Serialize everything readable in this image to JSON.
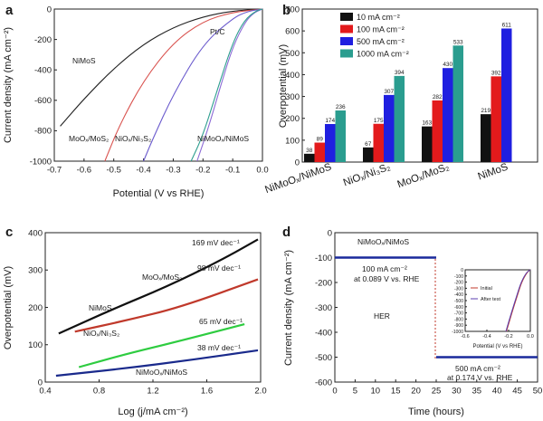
{
  "chart_data": [
    {
      "panel": "a",
      "type": "line",
      "xlabel": "Potential (V vs RHE)",
      "ylabel": "Current density (mA cm⁻²)",
      "xlim": [
        -0.7,
        0.0
      ],
      "ylim": [
        -1000,
        0
      ],
      "xticks": [
        "-0.7",
        "-0.6",
        "-0.5",
        "-0.4",
        "-0.3",
        "-0.2",
        "-0.1",
        "0.0"
      ],
      "yticks": [
        "-1000",
        "-800",
        "-600",
        "-400",
        "-200",
        "0"
      ],
      "series": [
        {
          "name": "NiMoS",
          "color": "#222222",
          "x": [
            0.0,
            -0.1,
            -0.2,
            -0.3,
            -0.4,
            -0.5,
            -0.6,
            -0.68
          ],
          "y": [
            0,
            -12,
            -50,
            -120,
            -230,
            -390,
            -590,
            -770
          ]
        },
        {
          "name": "MoOₓ/MoS₂",
          "color": "#d9534f",
          "x": [
            0.0,
            -0.1,
            -0.2,
            -0.3,
            -0.4,
            -0.48,
            -0.53
          ],
          "y": [
            0,
            -20,
            -80,
            -220,
            -470,
            -760,
            -1000
          ]
        },
        {
          "name": "NiOₓ/Ni₃S₂",
          "color": "#6a5acd",
          "x": [
            0.0,
            -0.05,
            -0.1,
            -0.2,
            -0.3,
            -0.37,
            -0.4
          ],
          "y": [
            0,
            -15,
            -60,
            -230,
            -560,
            -860,
            -1000
          ]
        },
        {
          "name": "Pt/C",
          "color": "#8c6bd6",
          "x": [
            0.0,
            -0.03,
            -0.06,
            -0.1,
            -0.14,
            -0.18,
            -0.22
          ],
          "y": [
            0,
            -25,
            -90,
            -250,
            -500,
            -770,
            -1000
          ]
        },
        {
          "name": "NiMoOₓ/NiMoS",
          "color": "#2e9e8f",
          "x": [
            0.0,
            -0.02,
            -0.06,
            -0.1,
            -0.15,
            -0.2,
            -0.24
          ],
          "y": [
            0,
            -10,
            -70,
            -220,
            -520,
            -830,
            -1000
          ]
        }
      ],
      "labels": [
        "NiMoS",
        "MoOₓ/MoS₂",
        "NiOₓ/Ni₃S₂",
        "Pt/C",
        "NiMoOₓ/NiMoS"
      ]
    },
    {
      "panel": "b",
      "type": "bar",
      "ylabel": "Overpotential (mV)",
      "ylim": [
        0,
        700
      ],
      "yticks": [
        "0",
        "100",
        "200",
        "300",
        "400",
        "500",
        "600",
        "700"
      ],
      "categories": [
        "NiMoOₓ/NiMoS",
        "NiOₓ/Ni₃S₂",
        "MoOₓ/MoS₂",
        "NiMoS"
      ],
      "series": [
        {
          "name": "10 mA cm⁻²",
          "color": "#111111",
          "values": [
            38,
            67,
            163,
            219
          ]
        },
        {
          "name": "100 mA cm⁻²",
          "color": "#e31a1c",
          "values": [
            89,
            175,
            282,
            392
          ]
        },
        {
          "name": "500 mA cm⁻²",
          "color": "#1f1fe0",
          "values": [
            174,
            307,
            430,
            611
          ]
        },
        {
          "name": "1000 mA cm⁻²",
          "color": "#2a9d8f",
          "values": [
            236,
            394,
            533,
            null
          ]
        }
      ],
      "value_labels": [
        [
          "38",
          "89",
          "174",
          "236"
        ],
        [
          "67",
          "175",
          "307",
          "394"
        ],
        [
          "163",
          "282",
          "430",
          "533"
        ],
        [
          "219",
          "392",
          "611",
          ""
        ]
      ]
    },
    {
      "panel": "c",
      "type": "line",
      "xlabel": "Log (j/mA cm⁻²)",
      "ylabel": "Overpotential (mV)",
      "xlim": [
        0.4,
        2.0
      ],
      "ylim": [
        0,
        400
      ],
      "xticks": [
        "0.4",
        "0.8",
        "1.2",
        "1.6",
        "2.0"
      ],
      "yticks": [
        "0",
        "100",
        "200",
        "300",
        "400"
      ],
      "series": [
        {
          "name": "NiMoS",
          "color": "#111111",
          "x": [
            0.5,
            0.9,
            1.3,
            1.7,
            1.98
          ],
          "y": [
            130,
            195,
            255,
            325,
            382
          ],
          "slope": "169 mV dec⁻¹"
        },
        {
          "name": "MoOₓ/MoS₂",
          "color": "#c0392b",
          "x": [
            0.62,
            1.0,
            1.4,
            1.98
          ],
          "y": [
            135,
            165,
            200,
            275
          ],
          "slope": "98 mV dec⁻¹"
        },
        {
          "name": "NiOₓ/Ni₃S₂",
          "color": "#2ecc40",
          "x": [
            0.65,
            1.0,
            1.4,
            1.88
          ],
          "y": [
            40,
            75,
            110,
            155
          ],
          "slope": "65 mV dec⁻¹"
        },
        {
          "name": "NiMoOₓ/NiMoS",
          "color": "#1a2a8c",
          "x": [
            0.48,
            1.0,
            1.5,
            1.98
          ],
          "y": [
            17,
            37,
            60,
            85
          ],
          "slope": "38 mV dec⁻¹"
        }
      ]
    },
    {
      "panel": "d",
      "type": "line",
      "xlabel": "Time (hours)",
      "ylabel": "Current density (mA cm⁻²)",
      "xlim": [
        0,
        50
      ],
      "ylim": [
        -600,
        0
      ],
      "xticks": [
        "0",
        "5",
        "10",
        "15",
        "20",
        "25",
        "30",
        "35",
        "40",
        "45",
        "50"
      ],
      "yticks": [
        "-600",
        "-500",
        "-400",
        "-300",
        "-200",
        "-100",
        "0"
      ],
      "series": [
        {
          "name": "100 mA cm⁻²",
          "color": "#1a2a9c",
          "x": [
            0,
            25
          ],
          "y": [
            -100,
            -100
          ]
        },
        {
          "name": "500 mA cm⁻²",
          "color": "#1a2a9c",
          "x": [
            25,
            50
          ],
          "y": [
            -500,
            -500
          ]
        }
      ],
      "title_label": "NiMoOₓ/NiMoS",
      "annotations": [
        "100 mA cm⁻²",
        "at 0.089 V vs. RHE",
        "HER",
        "500 mA cm⁻²",
        "at 0.174 V vs. RHE"
      ],
      "inset": {
        "xlabel": "Potential (V vs RHE)",
        "xlim": [
          -0.6,
          0.0
        ],
        "ylim": [
          -1000,
          0
        ],
        "xticks": [
          "-0.6",
          "-0.4",
          "-0.2",
          "0.0"
        ],
        "yticks": [
          "-1000",
          "-900",
          "-800",
          "-700",
          "-600",
          "-500",
          "-400",
          "-300",
          "-200",
          "-100",
          "0"
        ],
        "legend": [
          "Initial",
          "After test"
        ],
        "series": [
          {
            "name": "Initial",
            "color": "#c0392b",
            "x": [
              0.0,
              -0.03,
              -0.08,
              -0.12,
              -0.17,
              -0.22
            ],
            "y": [
              0,
              -40,
              -200,
              -420,
              -700,
              -1000
            ]
          },
          {
            "name": "After test",
            "color": "#5b3fb0",
            "x": [
              0.0,
              -0.035,
              -0.085,
              -0.125,
              -0.175,
              -0.225
            ],
            "y": [
              0,
              -40,
              -200,
              -420,
              -700,
              -1000
            ]
          }
        ]
      }
    }
  ]
}
